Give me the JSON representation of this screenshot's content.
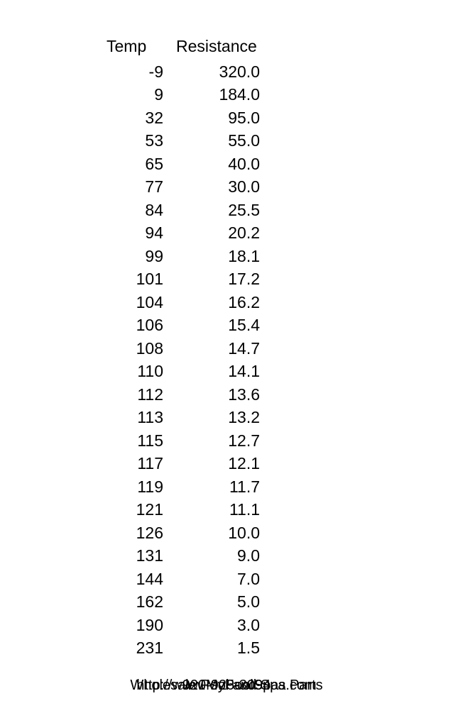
{
  "table": {
    "headers": {
      "temp": "Temp",
      "resistance": "Resistance"
    },
    "rows": [
      {
        "temp": "-9",
        "resistance": "320.0"
      },
      {
        "temp": "9",
        "resistance": "184.0"
      },
      {
        "temp": "32",
        "resistance": "95.0"
      },
      {
        "temp": "53",
        "resistance": "55.0"
      },
      {
        "temp": "65",
        "resistance": "40.0"
      },
      {
        "temp": "77",
        "resistance": "30.0"
      },
      {
        "temp": "84",
        "resistance": "25.5"
      },
      {
        "temp": "94",
        "resistance": "20.2"
      },
      {
        "temp": "99",
        "resistance": "18.1"
      },
      {
        "temp": "101",
        "resistance": "17.2"
      },
      {
        "temp": "104",
        "resistance": "16.2"
      },
      {
        "temp": "106",
        "resistance": "15.4"
      },
      {
        "temp": "108",
        "resistance": "14.7"
      },
      {
        "temp": "110",
        "resistance": "14.1"
      },
      {
        "temp": "112",
        "resistance": "13.6"
      },
      {
        "temp": "113",
        "resistance": "13.2"
      },
      {
        "temp": "115",
        "resistance": "12.7"
      },
      {
        "temp": "117",
        "resistance": "12.1"
      },
      {
        "temp": "119",
        "resistance": "11.7"
      },
      {
        "temp": "121",
        "resistance": "11.1"
      },
      {
        "temp": "126",
        "resistance": "10.0"
      },
      {
        "temp": "131",
        "resistance": "9.0"
      },
      {
        "temp": "144",
        "resistance": "7.0"
      },
      {
        "temp": "162",
        "resistance": "5.0"
      },
      {
        "temp": "190",
        "resistance": "3.0"
      },
      {
        "temp": "231",
        "resistance": "1.5"
      }
    ]
  },
  "footer": {
    "line1": "Wholesale Pool and Spa Parts",
    "line2": "http://www.MyPoolSpas.com",
    "line3": "920-925-3094"
  },
  "style": {
    "text_color": "#000000",
    "background_color": "#ffffff",
    "font_size_header": 23,
    "font_size_data": 23,
    "font_size_footer": 20
  }
}
